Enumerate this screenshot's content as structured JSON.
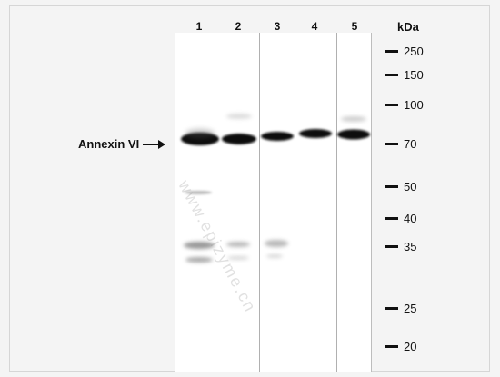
{
  "lanes": [
    "1",
    "2",
    "3",
    "4",
    "5"
  ],
  "kda_label": "kDa",
  "markers": [
    "250",
    "150",
    "100",
    "70",
    "50",
    "40",
    "35",
    "25",
    "20"
  ],
  "protein_label": "Annexin VI",
  "watermark": "www.epizyme.cn",
  "colors": {
    "band": "#111111",
    "blot_bg": "#ffffff",
    "page_bg": "#f4f4f4"
  }
}
